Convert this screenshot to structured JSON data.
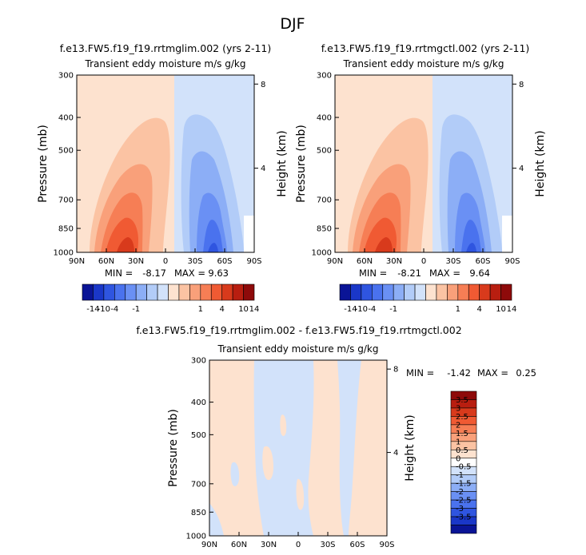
{
  "figure": {
    "title": "DJF"
  },
  "colors": {
    "blues": [
      "#0a1496",
      "#1a37c8",
      "#2f55e0",
      "#4a72ee",
      "#6a90f4",
      "#8caef6",
      "#b2ccf8",
      "#d2e2fa"
    ],
    "white": "#ffffff",
    "reds": [
      "#fde2cf",
      "#fbc3a3",
      "#f9a07a",
      "#f67e55",
      "#f05a33",
      "#d83a1c",
      "#b81e10",
      "#8e0a0a"
    ]
  },
  "chart_data": [
    {
      "type": "heatmap",
      "title": "f.e13.FW5.f19_f19.rrtmglim.002 (yrs 2-11)",
      "subtitle": "Transient eddy moisture m/s g/kg",
      "xlabel": "",
      "ylabel": "Pressure (mb)",
      "y2label": "Height (km)",
      "x_ticks": [
        "90N",
        "60N",
        "30N",
        "0",
        "30S",
        "60S",
        "90S"
      ],
      "y_ticks": [
        "300",
        "400",
        "500",
        "700",
        "850",
        "1000"
      ],
      "y2_ticks": [
        "8",
        "4"
      ],
      "ylim": [
        1000,
        300
      ],
      "stats": {
        "min_label": "MIN =",
        "min": "-8.17",
        "max_label": "MAX =",
        "max": "9.63"
      },
      "colorbar_labels": [
        "-14",
        "-10",
        "-4",
        "-1",
        "1",
        "4",
        "10",
        "14"
      ],
      "grid": false
    },
    {
      "type": "heatmap",
      "title": "f.e13.FW5.f19_f19.rrtmgctl.002 (yrs 2-11)",
      "subtitle": "Transient eddy moisture m/s g/kg",
      "xlabel": "",
      "ylabel": "Pressure (mb)",
      "y2label": "Height (km)",
      "x_ticks": [
        "90N",
        "60N",
        "30N",
        "0",
        "30S",
        "60S",
        "90S"
      ],
      "y_ticks": [
        "300",
        "400",
        "500",
        "700",
        "850",
        "1000"
      ],
      "y2_ticks": [
        "8",
        "4"
      ],
      "ylim": [
        1000,
        300
      ],
      "stats": {
        "min_label": "MIN =",
        "min": "-8.21",
        "max_label": "MAX =",
        "max": "9.64"
      },
      "colorbar_labels": [
        "-14",
        "-10",
        "-4",
        "-1",
        "1",
        "4",
        "10",
        "14"
      ],
      "grid": false
    },
    {
      "type": "heatmap",
      "title": "f.e13.FW5.f19_f19.rrtmglim.002 - f.e13.FW5.f19_f19.rrtmgctl.002",
      "subtitle": "Transient eddy moisture m/s g/kg",
      "xlabel": "",
      "ylabel": "Pressure (mb)",
      "y2label": "Height (km)",
      "x_ticks": [
        "90N",
        "60N",
        "30N",
        "0",
        "30S",
        "60S",
        "90S"
      ],
      "y_ticks": [
        "300",
        "400",
        "500",
        "700",
        "850",
        "1000"
      ],
      "y2_ticks": [
        "8",
        "4"
      ],
      "ylim": [
        1000,
        300
      ],
      "stats": {
        "min_label": "MIN =",
        "min": "-1.42",
        "max_label": "MAX =",
        "max": "0.25"
      },
      "colorbar_labels": [
        "3.5",
        "3",
        "2.5",
        "2",
        "1.5",
        "1",
        "0.5",
        "0",
        "-0.5",
        "-1",
        "-1.5",
        "-2",
        "-2.5",
        "-3",
        "-3.5"
      ],
      "grid": false
    }
  ]
}
